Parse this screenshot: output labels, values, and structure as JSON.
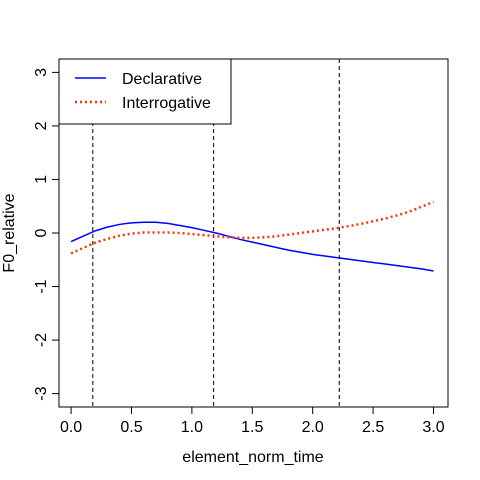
{
  "chart_data": {
    "type": "line",
    "xlabel": "element_norm_time",
    "ylabel": "F0_relative",
    "xlim": [
      -0.1,
      3.12
    ],
    "ylim": [
      -3.25,
      3.25
    ],
    "xticks": [
      "0.0",
      "0.5",
      "1.0",
      "1.5",
      "2.0",
      "2.5",
      "3.0"
    ],
    "xtick_values": [
      0,
      0.5,
      1,
      1.5,
      2,
      2.5,
      3
    ],
    "yticks": [
      "-3",
      "-2",
      "-1",
      "0",
      "1",
      "2",
      "3"
    ],
    "ytick_values": [
      -3,
      -2,
      -1,
      0,
      1,
      2,
      3
    ],
    "grid": false,
    "legend_position": "top-left",
    "vlines": [
      0.18,
      1.18,
      2.22
    ],
    "series": [
      {
        "name": "Declarative",
        "color": "#0000ff",
        "style": "solid",
        "x": [
          0,
          0.1,
          0.2,
          0.3,
          0.4,
          0.5,
          0.6,
          0.7,
          0.8,
          0.9,
          1.0,
          1.1,
          1.2,
          1.3,
          1.4,
          1.5,
          1.6,
          1.7,
          1.8,
          1.9,
          2.0,
          2.1,
          2.2,
          2.3,
          2.4,
          2.5,
          2.6,
          2.7,
          2.8,
          2.9,
          3.0
        ],
        "y": [
          -0.16,
          -0.06,
          0.04,
          0.11,
          0.16,
          0.19,
          0.2,
          0.2,
          0.18,
          0.14,
          0.1,
          0.05,
          0.0,
          -0.06,
          -0.12,
          -0.17,
          -0.22,
          -0.27,
          -0.32,
          -0.36,
          -0.4,
          -0.43,
          -0.46,
          -0.49,
          -0.52,
          -0.55,
          -0.58,
          -0.61,
          -0.64,
          -0.67,
          -0.71
        ]
      },
      {
        "name": "Interrogative",
        "color": "#ff3300",
        "style": "dotted",
        "x": [
          0,
          0.1,
          0.2,
          0.3,
          0.4,
          0.5,
          0.6,
          0.7,
          0.8,
          0.9,
          1.0,
          1.1,
          1.2,
          1.3,
          1.4,
          1.5,
          1.6,
          1.7,
          1.8,
          1.9,
          2.0,
          2.1,
          2.2,
          2.3,
          2.4,
          2.5,
          2.6,
          2.7,
          2.8,
          2.9,
          3.0
        ],
        "y": [
          -0.38,
          -0.28,
          -0.18,
          -0.11,
          -0.05,
          -0.01,
          0.01,
          0.01,
          0.01,
          0.0,
          -0.02,
          -0.04,
          -0.06,
          -0.08,
          -0.09,
          -0.09,
          -0.08,
          -0.06,
          -0.03,
          0.0,
          0.03,
          0.06,
          0.09,
          0.13,
          0.17,
          0.22,
          0.27,
          0.33,
          0.4,
          0.49,
          0.58
        ]
      }
    ]
  }
}
